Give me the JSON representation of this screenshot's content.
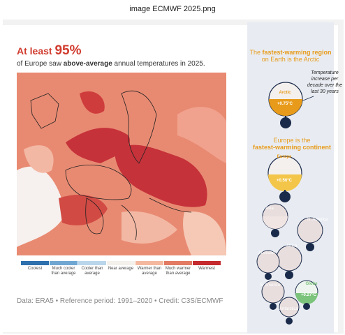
{
  "window": {
    "title": "image ECMWF 2025.png"
  },
  "headline": {
    "prefix": "At least",
    "value": "95%"
  },
  "subline": {
    "before": "of Europe saw",
    "bold": "above-average",
    "after": "annual temperatures in 2025."
  },
  "legend": [
    {
      "label": "Coolest",
      "color": "#2e6fae"
    },
    {
      "label": "Much cooler than average",
      "color": "#6fa6d2"
    },
    {
      "label": "Cooler than average",
      "color": "#b9d6ea"
    },
    {
      "label": "Near average",
      "color": "#f4f0ec"
    },
    {
      "label": "Warmer than average",
      "color": "#f4b8a0"
    },
    {
      "label": "Much warmer than average",
      "color": "#e27a64"
    },
    {
      "label": "Warmest",
      "color": "#c42a2e"
    }
  ],
  "footer": "Data: ERA5 • Reference period: 1991–2020 • Credit: C3S/ECMWF",
  "panel": {
    "arctic_heading_1": "The",
    "arctic_heading_bold": "fastest-warming region",
    "arctic_heading_2": "on Earth is the Arctic",
    "note": "Temperature increase per decade over the last 30 years",
    "europe_heading_1": "Europe is the",
    "europe_heading_bold": "fastest-warming continent",
    "arctic": {
      "label": "Arctic",
      "value": "+0.75°C"
    },
    "europe": {
      "label": "Europe",
      "value": "+0.56°C"
    },
    "globe": {
      "label": "Globe",
      "value": "+0.27°C"
    },
    "regions": [
      "Asia",
      "N. America",
      "Africa",
      "Australia",
      "S. America",
      "Antarctica"
    ]
  },
  "colors": {
    "accent_red": "#d13b2e",
    "accent_orange": "#e89b1a",
    "globe_green": "#7cc47c",
    "navy": "#1a2a4a"
  }
}
